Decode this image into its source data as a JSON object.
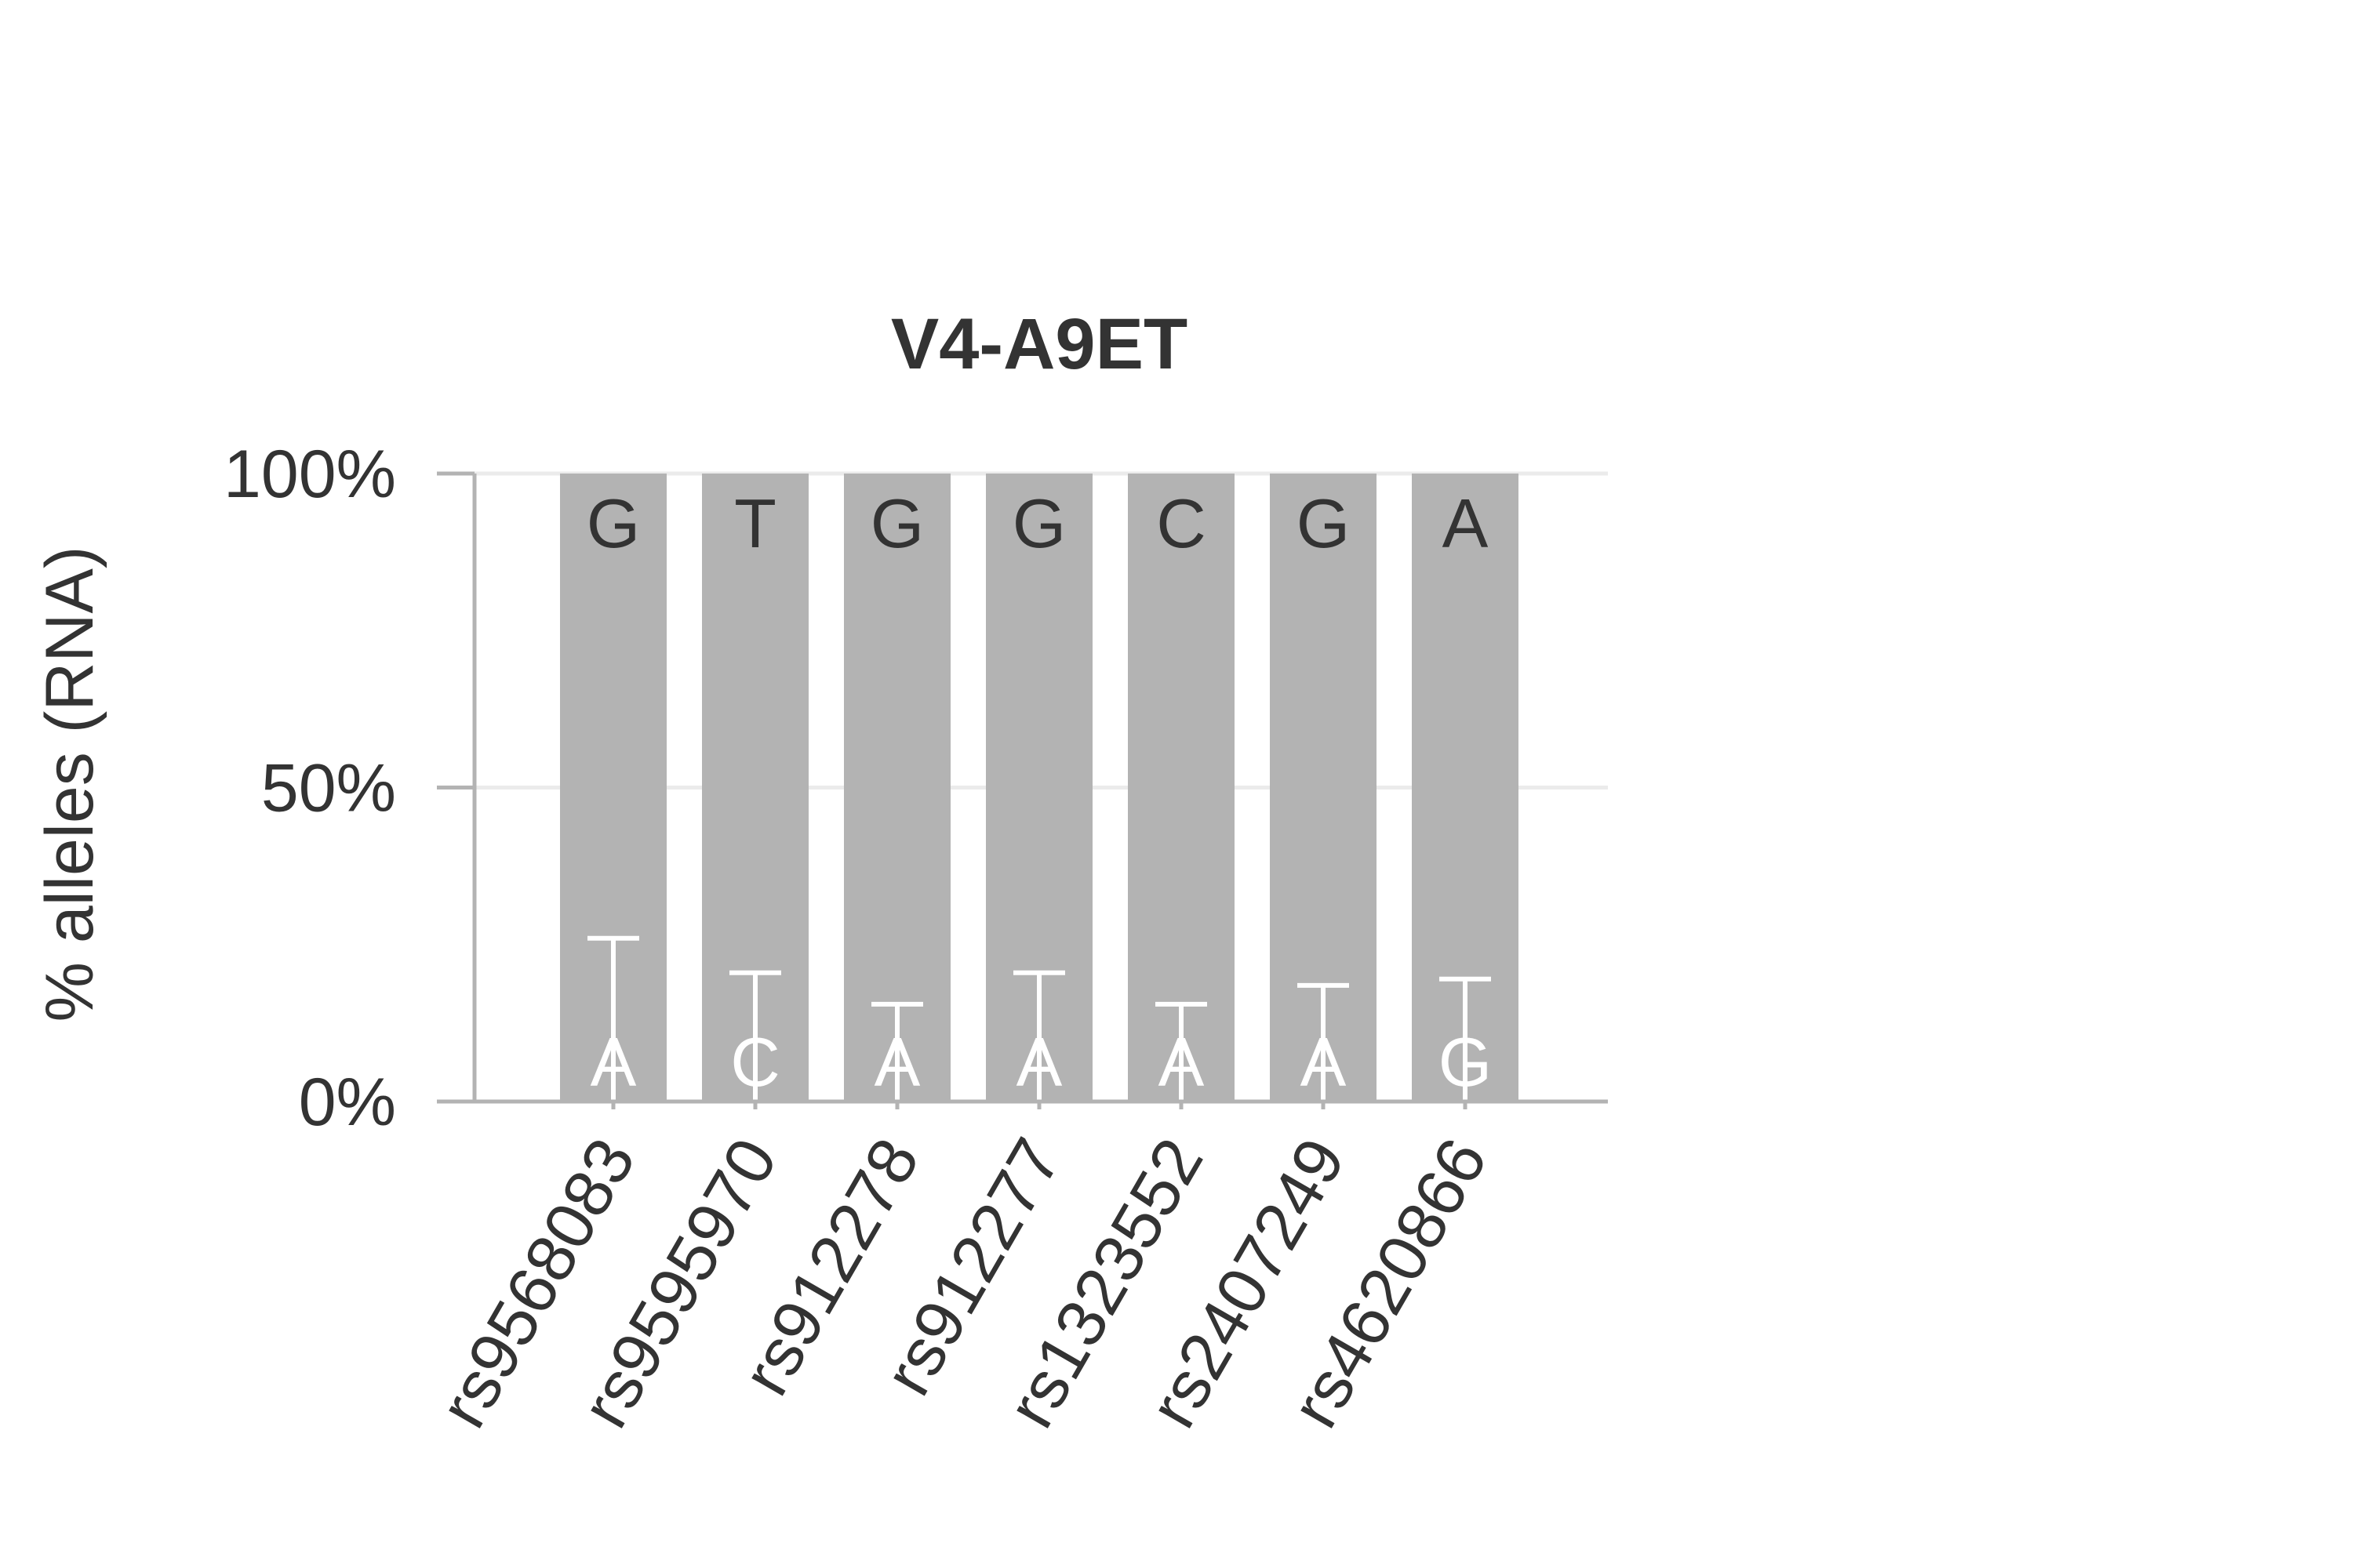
{
  "chart_data": {
    "type": "bar",
    "title": "V4-A9ET",
    "xlabel": "",
    "ylabel": "% alleles (RNA)",
    "ylim": [
      0,
      100
    ],
    "yticks": [
      {
        "value": 0,
        "label": "0%"
      },
      {
        "value": 50,
        "label": "50%"
      },
      {
        "value": 100,
        "label": "100%"
      }
    ],
    "grid": true,
    "categories": [
      "rs9568083",
      "rs9595970",
      "rs912278",
      "rs912277",
      "rs1323552",
      "rs2407249",
      "rs4620866"
    ],
    "series": [
      {
        "allele_role": "major",
        "values": [
          100,
          100,
          100,
          100,
          100,
          100,
          100
        ],
        "allele_labels": [
          "G",
          "T",
          "G",
          "G",
          "C",
          "G",
          "A"
        ]
      },
      {
        "allele_role": "minor",
        "values": [
          0,
          0,
          0,
          0,
          0,
          0,
          0
        ],
        "allele_labels": [
          "A",
          "C",
          "A",
          "A",
          "A",
          "A",
          "G"
        ],
        "error_upper": [
          26,
          20.5,
          15.5,
          20.5,
          15.5,
          18.5,
          19.5
        ]
      }
    ],
    "colors": {
      "bar": "#b3b3b3",
      "major_label": "#333333",
      "minor_label": "#ffffff",
      "error_bar": "#ffffff",
      "axis": "#b3b3b3",
      "grid": "#ebebeb",
      "text": "#333333"
    }
  }
}
